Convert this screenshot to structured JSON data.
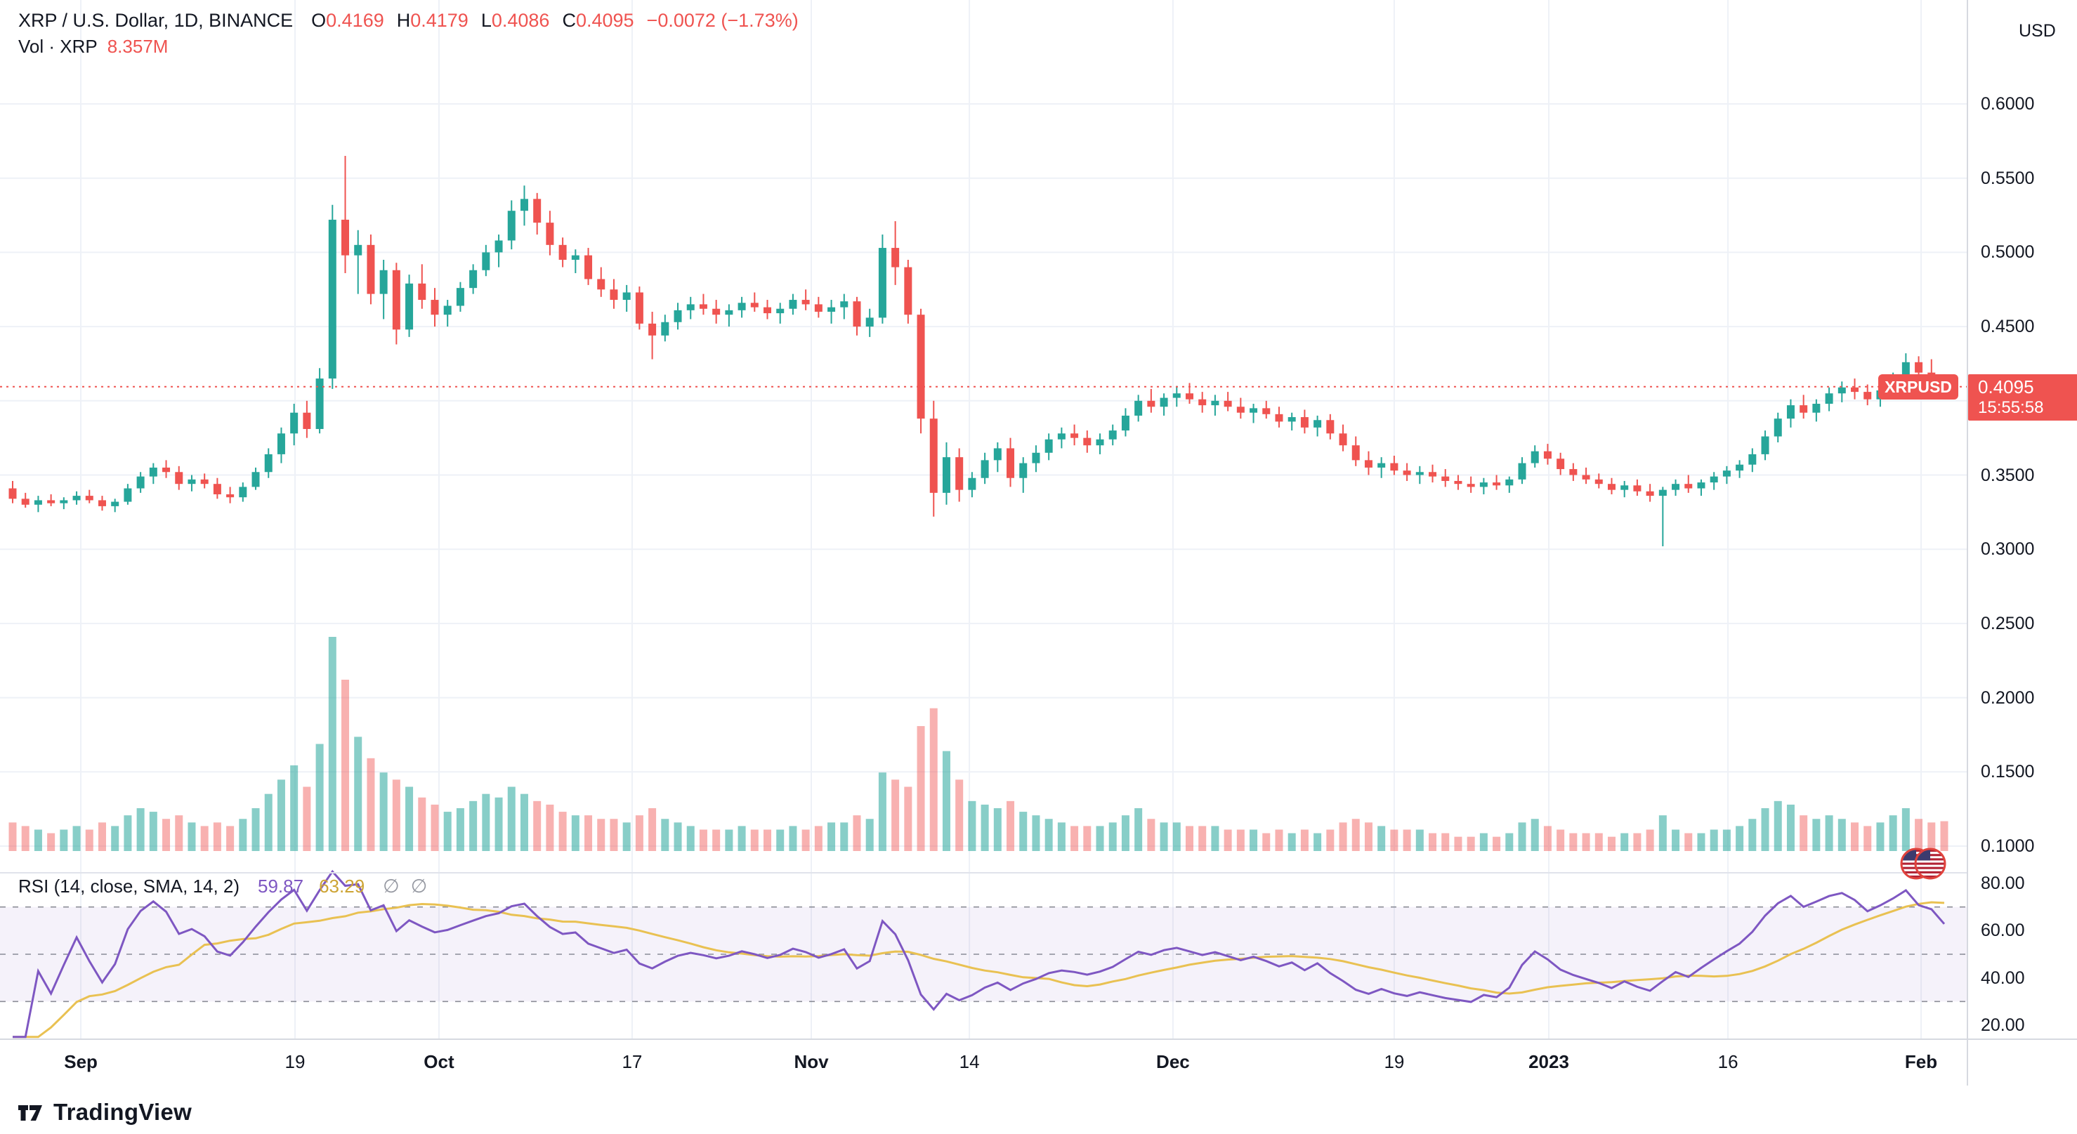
{
  "header": {
    "symbol_title": "XRP / U.S. Dollar, 1D, BINANCE",
    "ohlc": {
      "o_label": "O",
      "o": "0.4169",
      "h_label": "H",
      "h": "0.4179",
      "l_label": "L",
      "l": "0.4086",
      "c_label": "C",
      "c": "0.4095",
      "change": "−0.0072 (−1.73%)"
    },
    "volume_label": "Vol · XRP",
    "volume_value": "8.357M"
  },
  "price_axis": {
    "currency": "USD",
    "ticks": [
      "0.6000",
      "0.5500",
      "0.5000",
      "0.4500",
      "0.4000",
      "0.3500",
      "0.3000",
      "0.2500",
      "0.2000",
      "0.1500",
      "0.1000"
    ],
    "symbol_tag": "XRPUSD",
    "last_price_label": "0.4095",
    "countdown": "15:55:58"
  },
  "time_axis": {
    "ticks": [
      {
        "label": "Sep",
        "pos": 0.0411,
        "major": true
      },
      {
        "label": "19",
        "pos": 0.15,
        "major": false
      },
      {
        "label": "Oct",
        "pos": 0.2232,
        "major": true
      },
      {
        "label": "17",
        "pos": 0.3214,
        "major": false
      },
      {
        "label": "Nov",
        "pos": 0.4125,
        "major": true
      },
      {
        "label": "14",
        "pos": 0.4929,
        "major": false
      },
      {
        "label": "Dec",
        "pos": 0.5964,
        "major": true
      },
      {
        "label": "19",
        "pos": 0.7089,
        "major": false
      },
      {
        "label": "2023",
        "pos": 0.7875,
        "major": true
      },
      {
        "label": "16",
        "pos": 0.8786,
        "major": false
      },
      {
        "label": "Feb",
        "pos": 0.9768,
        "major": true
      }
    ]
  },
  "rsi": {
    "title": "RSI (14, close, SMA, 14, 2)",
    "rsi_value": "59.87",
    "sma_value": "63.29",
    "empty_1": "∅",
    "empty_2": "∅",
    "ticks": [
      "80.00",
      "60.00",
      "40.00",
      "20.00"
    ]
  },
  "footer": {
    "logo_text": "TradingView"
  },
  "colors": {
    "up": "#26a69a",
    "down": "#ef5350",
    "vol_up": "rgba(38,166,154,0.55)",
    "vol_down": "rgba(239,83,80,0.45)",
    "rsi_line": "#7e57c2",
    "rsi_sma": "#e9c152",
    "grid": "#eef1f7",
    "band_fill": "rgba(126,87,194,0.08)",
    "band_line": "#787b86",
    "last_price_line": "#ef5350"
  },
  "chart_data": {
    "type": "candlestick",
    "symbol": "XRP/USD",
    "exchange": "BINANCE",
    "interval": "1D",
    "title": "XRP / U.S. Dollar, 1D, BINANCE",
    "ylabel": "USD",
    "ylim_labeled": [
      0.1,
      0.6
    ],
    "last_price": 0.4095,
    "current_volume_m": 8.357,
    "rsi_settings": {
      "length": 14,
      "source": "close",
      "ma_type": "SMA",
      "ma_length": 14,
      "last_rsi": 59.87,
      "last_ma": 63.29,
      "band": [
        30,
        70
      ],
      "axis_ticks": [
        80,
        60,
        40,
        20
      ]
    },
    "candles_format": [
      "open",
      "high",
      "low",
      "close",
      "volume_rel"
    ],
    "candles": [
      [
        0.341,
        0.346,
        0.331,
        0.334,
        8
      ],
      [
        0.334,
        0.338,
        0.328,
        0.33,
        7
      ],
      [
        0.33,
        0.336,
        0.325,
        0.333,
        6
      ],
      [
        0.333,
        0.337,
        0.329,
        0.331,
        5
      ],
      [
        0.331,
        0.335,
        0.327,
        0.333,
        6
      ],
      [
        0.333,
        0.339,
        0.33,
        0.336,
        7
      ],
      [
        0.336,
        0.34,
        0.331,
        0.333,
        6
      ],
      [
        0.333,
        0.336,
        0.326,
        0.329,
        8
      ],
      [
        0.329,
        0.334,
        0.325,
        0.332,
        7
      ],
      [
        0.332,
        0.344,
        0.33,
        0.341,
        10
      ],
      [
        0.341,
        0.352,
        0.338,
        0.349,
        12
      ],
      [
        0.349,
        0.358,
        0.344,
        0.355,
        11
      ],
      [
        0.355,
        0.36,
        0.348,
        0.352,
        9
      ],
      [
        0.352,
        0.356,
        0.34,
        0.344,
        10
      ],
      [
        0.344,
        0.35,
        0.339,
        0.347,
        8
      ],
      [
        0.347,
        0.351,
        0.341,
        0.344,
        7
      ],
      [
        0.344,
        0.348,
        0.334,
        0.337,
        8
      ],
      [
        0.337,
        0.342,
        0.331,
        0.335,
        7
      ],
      [
        0.335,
        0.345,
        0.332,
        0.342,
        9
      ],
      [
        0.342,
        0.355,
        0.34,
        0.352,
        12
      ],
      [
        0.352,
        0.368,
        0.348,
        0.364,
        16
      ],
      [
        0.364,
        0.382,
        0.358,
        0.378,
        20
      ],
      [
        0.378,
        0.398,
        0.37,
        0.392,
        24
      ],
      [
        0.392,
        0.4,
        0.375,
        0.381,
        18
      ],
      [
        0.381,
        0.422,
        0.378,
        0.415,
        30
      ],
      [
        0.415,
        0.532,
        0.408,
        0.522,
        60
      ],
      [
        0.522,
        0.565,
        0.486,
        0.498,
        48
      ],
      [
        0.498,
        0.515,
        0.472,
        0.505,
        32
      ],
      [
        0.505,
        0.512,
        0.465,
        0.472,
        26
      ],
      [
        0.472,
        0.495,
        0.455,
        0.488,
        22
      ],
      [
        0.488,
        0.493,
        0.438,
        0.448,
        20
      ],
      [
        0.448,
        0.485,
        0.443,
        0.479,
        18
      ],
      [
        0.479,
        0.492,
        0.462,
        0.468,
        15
      ],
      [
        0.468,
        0.476,
        0.45,
        0.458,
        13
      ],
      [
        0.458,
        0.468,
        0.45,
        0.464,
        11
      ],
      [
        0.464,
        0.48,
        0.46,
        0.476,
        12
      ],
      [
        0.476,
        0.492,
        0.472,
        0.488,
        14
      ],
      [
        0.488,
        0.505,
        0.484,
        0.5,
        16
      ],
      [
        0.5,
        0.512,
        0.49,
        0.508,
        15
      ],
      [
        0.508,
        0.535,
        0.502,
        0.528,
        18
      ],
      [
        0.528,
        0.545,
        0.518,
        0.536,
        16
      ],
      [
        0.536,
        0.54,
        0.512,
        0.52,
        14
      ],
      [
        0.52,
        0.528,
        0.498,
        0.505,
        13
      ],
      [
        0.505,
        0.51,
        0.49,
        0.495,
        11
      ],
      [
        0.495,
        0.502,
        0.486,
        0.498,
        10
      ],
      [
        0.498,
        0.503,
        0.478,
        0.482,
        10
      ],
      [
        0.482,
        0.49,
        0.47,
        0.475,
        9
      ],
      [
        0.475,
        0.482,
        0.462,
        0.468,
        9
      ],
      [
        0.468,
        0.478,
        0.46,
        0.473,
        8
      ],
      [
        0.473,
        0.477,
        0.448,
        0.452,
        10
      ],
      [
        0.452,
        0.46,
        0.428,
        0.444,
        12
      ],
      [
        0.444,
        0.458,
        0.44,
        0.453,
        9
      ],
      [
        0.453,
        0.466,
        0.448,
        0.461,
        8
      ],
      [
        0.461,
        0.47,
        0.455,
        0.465,
        7
      ],
      [
        0.465,
        0.472,
        0.458,
        0.462,
        6
      ],
      [
        0.462,
        0.468,
        0.452,
        0.458,
        6
      ],
      [
        0.458,
        0.465,
        0.45,
        0.461,
        6
      ],
      [
        0.461,
        0.47,
        0.456,
        0.466,
        7
      ],
      [
        0.466,
        0.473,
        0.46,
        0.463,
        6
      ],
      [
        0.463,
        0.468,
        0.455,
        0.459,
        6
      ],
      [
        0.459,
        0.466,
        0.452,
        0.462,
        6
      ],
      [
        0.462,
        0.472,
        0.458,
        0.468,
        7
      ],
      [
        0.468,
        0.475,
        0.461,
        0.465,
        6
      ],
      [
        0.465,
        0.47,
        0.456,
        0.46,
        7
      ],
      [
        0.46,
        0.468,
        0.452,
        0.463,
        8
      ],
      [
        0.463,
        0.472,
        0.455,
        0.467,
        8
      ],
      [
        0.467,
        0.47,
        0.444,
        0.45,
        10
      ],
      [
        0.45,
        0.462,
        0.443,
        0.456,
        9
      ],
      [
        0.456,
        0.512,
        0.452,
        0.503,
        22
      ],
      [
        0.503,
        0.521,
        0.478,
        0.49,
        20
      ],
      [
        0.49,
        0.495,
        0.452,
        0.458,
        18
      ],
      [
        0.458,
        0.462,
        0.378,
        0.388,
        35
      ],
      [
        0.388,
        0.4,
        0.322,
        0.338,
        40
      ],
      [
        0.338,
        0.372,
        0.33,
        0.362,
        28
      ],
      [
        0.362,
        0.368,
        0.332,
        0.34,
        20
      ],
      [
        0.34,
        0.352,
        0.335,
        0.348,
        14
      ],
      [
        0.348,
        0.365,
        0.344,
        0.36,
        13
      ],
      [
        0.36,
        0.372,
        0.352,
        0.368,
        12
      ],
      [
        0.368,
        0.375,
        0.342,
        0.348,
        14
      ],
      [
        0.348,
        0.362,
        0.338,
        0.358,
        11
      ],
      [
        0.358,
        0.37,
        0.352,
        0.365,
        10
      ],
      [
        0.365,
        0.378,
        0.36,
        0.374,
        9
      ],
      [
        0.374,
        0.382,
        0.368,
        0.378,
        8
      ],
      [
        0.378,
        0.384,
        0.37,
        0.375,
        7
      ],
      [
        0.375,
        0.38,
        0.365,
        0.37,
        7
      ],
      [
        0.37,
        0.378,
        0.364,
        0.374,
        7
      ],
      [
        0.374,
        0.384,
        0.37,
        0.38,
        8
      ],
      [
        0.38,
        0.395,
        0.376,
        0.39,
        10
      ],
      [
        0.39,
        0.404,
        0.386,
        0.4,
        12
      ],
      [
        0.4,
        0.408,
        0.392,
        0.396,
        9
      ],
      [
        0.396,
        0.405,
        0.39,
        0.402,
        8
      ],
      [
        0.402,
        0.41,
        0.396,
        0.405,
        8
      ],
      [
        0.405,
        0.412,
        0.398,
        0.401,
        7
      ],
      [
        0.401,
        0.406,
        0.392,
        0.397,
        7
      ],
      [
        0.397,
        0.404,
        0.39,
        0.4,
        7
      ],
      [
        0.4,
        0.406,
        0.393,
        0.396,
        6
      ],
      [
        0.396,
        0.402,
        0.388,
        0.392,
        6
      ],
      [
        0.392,
        0.398,
        0.385,
        0.395,
        6
      ],
      [
        0.395,
        0.4,
        0.388,
        0.391,
        5
      ],
      [
        0.391,
        0.396,
        0.382,
        0.386,
        6
      ],
      [
        0.386,
        0.392,
        0.38,
        0.389,
        5
      ],
      [
        0.389,
        0.394,
        0.378,
        0.382,
        6
      ],
      [
        0.382,
        0.39,
        0.376,
        0.387,
        5
      ],
      [
        0.387,
        0.391,
        0.374,
        0.378,
        6
      ],
      [
        0.378,
        0.384,
        0.366,
        0.37,
        8
      ],
      [
        0.37,
        0.376,
        0.356,
        0.36,
        9
      ],
      [
        0.36,
        0.366,
        0.35,
        0.355,
        8
      ],
      [
        0.355,
        0.362,
        0.348,
        0.358,
        7
      ],
      [
        0.358,
        0.363,
        0.35,
        0.353,
        6
      ],
      [
        0.353,
        0.358,
        0.346,
        0.35,
        6
      ],
      [
        0.35,
        0.356,
        0.344,
        0.352,
        6
      ],
      [
        0.352,
        0.357,
        0.345,
        0.349,
        5
      ],
      [
        0.349,
        0.354,
        0.342,
        0.346,
        5
      ],
      [
        0.346,
        0.35,
        0.34,
        0.344,
        4
      ],
      [
        0.344,
        0.349,
        0.338,
        0.342,
        4
      ],
      [
        0.342,
        0.348,
        0.337,
        0.345,
        5
      ],
      [
        0.345,
        0.35,
        0.34,
        0.343,
        4
      ],
      [
        0.343,
        0.349,
        0.338,
        0.347,
        5
      ],
      [
        0.347,
        0.362,
        0.344,
        0.358,
        8
      ],
      [
        0.358,
        0.37,
        0.355,
        0.366,
        9
      ],
      [
        0.366,
        0.371,
        0.357,
        0.361,
        7
      ],
      [
        0.361,
        0.365,
        0.35,
        0.354,
        6
      ],
      [
        0.354,
        0.358,
        0.346,
        0.35,
        5
      ],
      [
        0.35,
        0.355,
        0.344,
        0.347,
        5
      ],
      [
        0.347,
        0.351,
        0.341,
        0.344,
        5
      ],
      [
        0.344,
        0.348,
        0.337,
        0.34,
        4
      ],
      [
        0.34,
        0.346,
        0.335,
        0.343,
        5
      ],
      [
        0.343,
        0.347,
        0.336,
        0.339,
        5
      ],
      [
        0.339,
        0.344,
        0.332,
        0.336,
        6
      ],
      [
        0.336,
        0.342,
        0.302,
        0.34,
        10
      ],
      [
        0.34,
        0.347,
        0.336,
        0.344,
        6
      ],
      [
        0.344,
        0.35,
        0.338,
        0.341,
        5
      ],
      [
        0.341,
        0.347,
        0.336,
        0.345,
        5
      ],
      [
        0.345,
        0.352,
        0.34,
        0.349,
        6
      ],
      [
        0.349,
        0.356,
        0.344,
        0.353,
        6
      ],
      [
        0.353,
        0.36,
        0.348,
        0.357,
        7
      ],
      [
        0.357,
        0.368,
        0.352,
        0.364,
        9
      ],
      [
        0.364,
        0.38,
        0.36,
        0.376,
        12
      ],
      [
        0.376,
        0.392,
        0.372,
        0.388,
        14
      ],
      [
        0.388,
        0.401,
        0.382,
        0.397,
        13
      ],
      [
        0.397,
        0.404,
        0.388,
        0.392,
        10
      ],
      [
        0.392,
        0.401,
        0.386,
        0.398,
        9
      ],
      [
        0.398,
        0.409,
        0.393,
        0.405,
        10
      ],
      [
        0.405,
        0.413,
        0.399,
        0.409,
        9
      ],
      [
        0.409,
        0.415,
        0.401,
        0.406,
        8
      ],
      [
        0.406,
        0.411,
        0.397,
        0.401,
        7
      ],
      [
        0.401,
        0.41,
        0.396,
        0.407,
        8
      ],
      [
        0.407,
        0.419,
        0.403,
        0.415,
        10
      ],
      [
        0.415,
        0.432,
        0.411,
        0.426,
        12
      ],
      [
        0.426,
        0.43,
        0.415,
        0.419,
        9
      ],
      [
        0.419,
        0.428,
        0.413,
        0.417,
        8
      ],
      [
        0.4169,
        0.4179,
        0.4086,
        0.4095,
        8.357
      ]
    ]
  }
}
